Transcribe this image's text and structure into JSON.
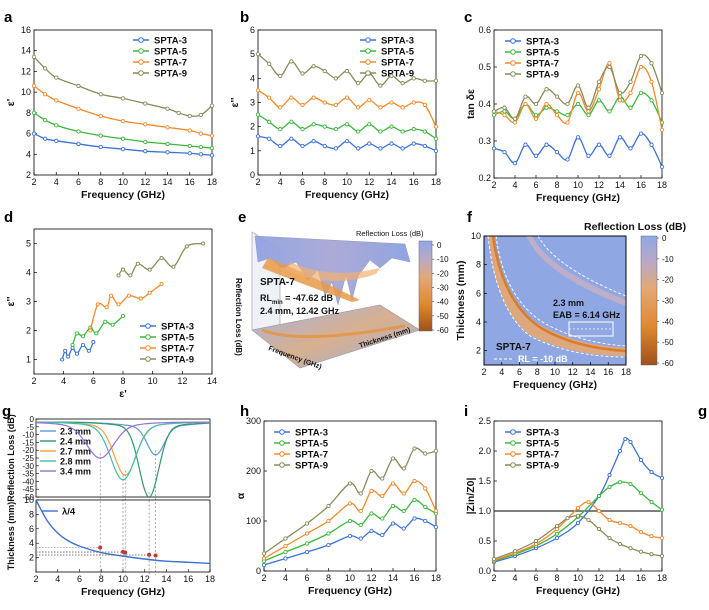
{
  "colors": {
    "SPTA-3": "#3a72d8",
    "SPTA-5": "#3db83d",
    "SPTA-7": "#f28a2a",
    "SPTA-9": "#8a8a5a",
    "g_2.3": "#5b9bd5",
    "g_2.4": "#2e9a6e",
    "g_2.7": "#f5a03a",
    "g_2.8": "#3dbfb0",
    "g_3.4": "#9370db"
  },
  "chart_data": [
    {
      "panel": "a",
      "type": "line",
      "xlabel": "Frequency (GHz)",
      "ylabel": "ε'",
      "xlim": [
        2,
        18
      ],
      "ylim": [
        2,
        16
      ],
      "xticks": [
        "2",
        "4",
        "6",
        "8",
        "10",
        "12",
        "14",
        "16",
        "18"
      ],
      "yticks": [
        "2",
        "4",
        "6",
        "8",
        "10",
        "12",
        "14",
        "16"
      ],
      "legend": "top-right",
      "series": [
        {
          "name": "SPTA-3",
          "x": [
            2,
            3,
            4,
            6,
            8,
            10,
            12,
            14,
            16,
            17,
            18
          ],
          "values": [
            6.0,
            5.5,
            5.3,
            5.0,
            4.7,
            4.5,
            4.3,
            4.2,
            4.1,
            4.0,
            3.9
          ]
        },
        {
          "name": "SPTA-5",
          "x": [
            2,
            3,
            4,
            6,
            8,
            10,
            12,
            14,
            16,
            17,
            18
          ],
          "values": [
            8.0,
            7.3,
            6.8,
            6.2,
            5.8,
            5.5,
            5.2,
            5.0,
            4.8,
            4.7,
            4.6
          ]
        },
        {
          "name": "SPTA-7",
          "x": [
            2,
            3,
            4,
            6,
            8,
            10,
            12,
            14,
            16,
            17,
            18
          ],
          "values": [
            10.6,
            9.8,
            9.2,
            8.4,
            7.7,
            7.2,
            6.9,
            6.6,
            6.3,
            6.0,
            5.8
          ]
        },
        {
          "name": "SPTA-9",
          "x": [
            2,
            3,
            4,
            6,
            8,
            10,
            12,
            14,
            15,
            16,
            17,
            18
          ],
          "values": [
            13.4,
            12.3,
            11.4,
            10.6,
            9.8,
            9.4,
            8.9,
            8.4,
            8.0,
            7.7,
            7.8,
            8.7
          ]
        }
      ]
    },
    {
      "panel": "b",
      "type": "line",
      "xlabel": "Frequency (GHz)",
      "ylabel": "ε''",
      "xlim": [
        2,
        18
      ],
      "ylim": [
        0,
        6
      ],
      "xticks": [
        "2",
        "4",
        "6",
        "8",
        "10",
        "12",
        "14",
        "16",
        "18"
      ],
      "yticks": [
        "0",
        "1",
        "2",
        "3",
        "4",
        "5",
        "6"
      ],
      "legend": "top-right",
      "series": [
        {
          "name": "SPTA-3",
          "x": [
            2,
            3,
            4,
            5,
            6,
            7,
            8,
            9,
            10,
            11,
            12,
            13,
            14,
            15,
            16,
            17,
            18
          ],
          "values": [
            1.6,
            1.5,
            1.2,
            1.5,
            1.2,
            1.4,
            1.2,
            1.1,
            1.4,
            1.1,
            1.3,
            1.1,
            1.3,
            1.1,
            1.3,
            1.2,
            1.0
          ]
        },
        {
          "name": "SPTA-5",
          "x": [
            2,
            3,
            4,
            5,
            6,
            7,
            8,
            9,
            10,
            11,
            12,
            13,
            14,
            15,
            16,
            17,
            18
          ],
          "values": [
            2.5,
            2.2,
            1.9,
            2.2,
            1.9,
            2.1,
            2.0,
            1.9,
            2.1,
            1.8,
            2.1,
            1.8,
            2.0,
            1.8,
            1.9,
            1.8,
            1.5
          ]
        },
        {
          "name": "SPTA-7",
          "x": [
            2,
            3,
            4,
            5,
            6,
            7,
            8,
            9,
            10,
            11,
            12,
            13,
            14,
            15,
            16,
            17,
            18
          ],
          "values": [
            3.5,
            3.2,
            2.8,
            3.2,
            2.9,
            3.2,
            3.0,
            2.9,
            3.2,
            2.8,
            3.1,
            2.8,
            3.0,
            2.8,
            3.0,
            2.9,
            2.0
          ]
        },
        {
          "name": "SPTA-9",
          "x": [
            2,
            3,
            4,
            5,
            6,
            7,
            8,
            9,
            10,
            11,
            12,
            13,
            14,
            15,
            16,
            17,
            18
          ],
          "values": [
            5.0,
            4.6,
            4.1,
            4.7,
            4.2,
            4.5,
            4.3,
            4.0,
            4.3,
            3.8,
            4.2,
            3.7,
            4.1,
            3.8,
            4.0,
            3.9,
            3.9
          ]
        }
      ]
    },
    {
      "panel": "c",
      "type": "line",
      "xlabel": "Frequency (GHz)",
      "ylabel": "tan δε",
      "xlim": [
        2,
        18
      ],
      "ylim": [
        0.2,
        0.6
      ],
      "xticks": [
        "2",
        "4",
        "6",
        "8",
        "10",
        "12",
        "14",
        "16",
        "18"
      ],
      "yticks": [
        "0.2",
        "0.3",
        "0.4",
        "0.5",
        "0.6"
      ],
      "legend": "top-left",
      "series": [
        {
          "name": "SPTA-3",
          "x": [
            2,
            3,
            4,
            5,
            6,
            7,
            8,
            9,
            10,
            11,
            12,
            13,
            14,
            15,
            16,
            17,
            18
          ],
          "values": [
            0.28,
            0.27,
            0.24,
            0.29,
            0.26,
            0.29,
            0.27,
            0.25,
            0.31,
            0.26,
            0.29,
            0.26,
            0.31,
            0.28,
            0.32,
            0.29,
            0.23
          ]
        },
        {
          "name": "SPTA-5",
          "x": [
            2,
            3,
            4,
            5,
            6,
            7,
            8,
            9,
            10,
            11,
            12,
            13,
            14,
            15,
            16,
            17,
            18
          ],
          "values": [
            0.37,
            0.38,
            0.36,
            0.4,
            0.37,
            0.39,
            0.38,
            0.37,
            0.4,
            0.37,
            0.41,
            0.38,
            0.42,
            0.39,
            0.43,
            0.41,
            0.35
          ]
        },
        {
          "name": "SPTA-7",
          "x": [
            2,
            3,
            4,
            5,
            6,
            7,
            8,
            9,
            10,
            11,
            12,
            13,
            14,
            15,
            16,
            17,
            18
          ],
          "values": [
            0.38,
            0.37,
            0.35,
            0.4,
            0.36,
            0.4,
            0.37,
            0.35,
            0.43,
            0.38,
            0.44,
            0.51,
            0.41,
            0.43,
            0.5,
            0.46,
            0.33
          ]
        },
        {
          "name": "SPTA-9",
          "x": [
            2,
            3,
            4,
            5,
            6,
            7,
            8,
            9,
            10,
            11,
            12,
            13,
            14,
            15,
            16,
            17,
            18
          ],
          "values": [
            0.38,
            0.39,
            0.36,
            0.42,
            0.4,
            0.44,
            0.42,
            0.4,
            0.45,
            0.39,
            0.46,
            0.5,
            0.43,
            0.46,
            0.53,
            0.51,
            0.43
          ]
        }
      ]
    },
    {
      "panel": "d",
      "type": "line",
      "xlabel": "ε'",
      "ylabel": "ε''",
      "xlim": [
        2,
        14
      ],
      "ylim": [
        0.5,
        5.5
      ],
      "xticks": [
        "2",
        "4",
        "6",
        "8",
        "10",
        "12",
        "14"
      ],
      "yticks": [
        "1",
        "2",
        "3",
        "4",
        "5"
      ],
      "legend": "bottom-right",
      "series": [
        {
          "name": "SPTA-3",
          "x": [
            3.9,
            4.1,
            4.3,
            4.6,
            4.9,
            5.3,
            5.7,
            6.0
          ],
          "values": [
            1.0,
            1.3,
            1.1,
            1.4,
            1.2,
            1.5,
            1.3,
            1.6
          ]
        },
        {
          "name": "SPTA-5",
          "x": [
            4.6,
            4.9,
            5.3,
            5.8,
            6.2,
            6.8,
            7.3,
            8.0
          ],
          "values": [
            1.5,
            1.9,
            1.8,
            2.1,
            1.9,
            2.3,
            2.2,
            2.5
          ]
        },
        {
          "name": "SPTA-7",
          "x": [
            5.8,
            6.3,
            6.9,
            7.2,
            7.7,
            8.4,
            9.2,
            9.8,
            10.6
          ],
          "values": [
            2.0,
            2.9,
            2.8,
            3.2,
            2.9,
            3.2,
            3.1,
            3.3,
            3.6
          ]
        },
        {
          "name": "SPTA-9",
          "x": [
            7.7,
            8.0,
            8.5,
            9.0,
            9.8,
            10.6,
            11.4,
            12.3,
            13.4
          ],
          "values": [
            3.9,
            4.1,
            3.9,
            4.3,
            4.1,
            4.5,
            4.2,
            4.9,
            5.0
          ]
        }
      ]
    },
    {
      "panel": "e",
      "type": "surface3d",
      "zlabel": "Reflection Loss (dB)",
      "colorbar_title": "Reflection Loss (dB)",
      "colorbar_ticks": [
        "0",
        "-10",
        "-20",
        "-30",
        "-40",
        "-50",
        "-60"
      ],
      "sample": "SPTA-7",
      "rl_min_label": "RL",
      "rl_min_sub": "min",
      "rl_min_value": " = -47.62 dB",
      "condition": "2.4 mm, 12.42 GHz",
      "xaxis": "Frequency (GHz)",
      "yaxis": "Thickness (mm)"
    },
    {
      "panel": "f",
      "type": "heatmap",
      "title": "Reflection Loss (dB)",
      "xlabel": "Frequency (GHz)",
      "ylabel": "Thickness (mm)",
      "xlim": [
        2,
        18
      ],
      "ylim": [
        1,
        10
      ],
      "xticks": [
        "2",
        "4",
        "6",
        "8",
        "10",
        "12",
        "14",
        "16",
        "18"
      ],
      "yticks": [
        "2",
        "4",
        "6",
        "8",
        "10"
      ],
      "colorbar_ticks": [
        "0",
        "-10",
        "-20",
        "-30",
        "-40",
        "-50",
        "-60"
      ],
      "sample": "SPTA-7",
      "rl_label": "RL = -10 dB",
      "eab_thickness": "2.3 mm",
      "eab_text": "EAB = 6.14 GHz",
      "eab_range_ghz": [
        11.4,
        17.5
      ]
    },
    {
      "panel": "g",
      "type": "line",
      "top": {
        "ylabel": "Reflection Loss (dB)",
        "xlim": [
          2,
          18
        ],
        "ylim": [
          -50,
          0
        ],
        "yticks": [
          "0",
          "-5",
          "-10",
          "-15",
          "-20",
          "-25",
          "-30",
          "-35",
          "-40",
          "-45",
          "-50"
        ],
        "series": [
          {
            "name": "2.3 mm",
            "dip_ghz": 13.0,
            "dip_db": -20
          },
          {
            "name": "2.4 mm",
            "dip_ghz": 12.4,
            "dip_db": -47
          },
          {
            "name": "2.7 mm",
            "dip_ghz": 10.2,
            "dip_db": -33
          },
          {
            "name": "2.8 mm",
            "dip_ghz": 10.0,
            "dip_db": -36
          },
          {
            "name": "3.4 mm",
            "dip_ghz": 7.9,
            "dip_db": -22
          }
        ]
      },
      "bottom": {
        "ylabel": "Thickness (mm)",
        "xlabel": "Frequency (GHz)",
        "legend": "λ/4",
        "xlim": [
          2,
          18
        ],
        "ylim": [
          0,
          10
        ],
        "xticks": [
          "2",
          "4",
          "6",
          "8",
          "10",
          "12",
          "14",
          "16",
          "18"
        ],
        "yticks": [
          "2",
          "4",
          "6",
          "8",
          "10"
        ],
        "x": [
          2,
          3,
          4,
          5,
          6,
          8,
          10,
          12,
          14,
          16,
          18
        ],
        "values": [
          10.5,
          7.2,
          5.4,
          4.3,
          3.6,
          2.7,
          2.2,
          1.8,
          1.5,
          1.35,
          1.2
        ]
      }
    },
    {
      "panel": "h",
      "type": "line",
      "xlabel": "Frequency (GHz)",
      "ylabel": "α",
      "xlim": [
        2,
        18
      ],
      "ylim": [
        0,
        300
      ],
      "xticks": [
        "2",
        "4",
        "6",
        "8",
        "10",
        "12",
        "14",
        "16",
        "18"
      ],
      "yticks": [
        "0",
        "100",
        "200",
        "300"
      ],
      "legend": "top-left",
      "series": [
        {
          "name": "SPTA-3",
          "x": [
            2,
            4,
            6,
            8,
            10,
            11,
            12,
            13,
            14,
            15,
            16,
            17,
            18
          ],
          "values": [
            12,
            25,
            38,
            52,
            70,
            65,
            80,
            72,
            95,
            85,
            105,
            100,
            88
          ]
        },
        {
          "name": "SPTA-5",
          "x": [
            2,
            4,
            6,
            8,
            10,
            11,
            12,
            13,
            14,
            15,
            16,
            17,
            18
          ],
          "values": [
            20,
            38,
            55,
            75,
            100,
            92,
            115,
            105,
            130,
            120,
            142,
            128,
            115
          ]
        },
        {
          "name": "SPTA-7",
          "x": [
            2,
            4,
            6,
            8,
            10,
            11,
            12,
            13,
            14,
            15,
            16,
            17,
            18
          ],
          "values": [
            25,
            50,
            75,
            100,
            135,
            120,
            160,
            150,
            175,
            155,
            180,
            165,
            120
          ]
        },
        {
          "name": "SPTA-9",
          "x": [
            2,
            4,
            6,
            8,
            10,
            11,
            12,
            13,
            14,
            15,
            16,
            17,
            18
          ],
          "values": [
            35,
            65,
            95,
            130,
            175,
            155,
            200,
            185,
            225,
            205,
            245,
            235,
            240
          ]
        }
      ]
    },
    {
      "panel": "i",
      "type": "line",
      "xlabel": "Frequency (GHz)",
      "ylabel": "|Zin/Z0|",
      "xlim": [
        2,
        18
      ],
      "ylim": [
        0.0,
        2.5
      ],
      "xticks": [
        "2",
        "4",
        "6",
        "8",
        "10",
        "12",
        "14",
        "16",
        "18"
      ],
      "yticks": [
        "0.0",
        "0.5",
        "1.0",
        "1.5",
        "2.0",
        "2.5"
      ],
      "hline": 1.0,
      "legend": "top-left",
      "series": [
        {
          "name": "SPTA-3",
          "x": [
            2,
            4,
            6,
            8,
            10,
            12,
            13,
            14,
            14.5,
            15,
            16,
            17,
            18
          ],
          "values": [
            0.15,
            0.25,
            0.38,
            0.55,
            0.8,
            1.25,
            1.6,
            2.0,
            2.2,
            2.15,
            1.85,
            1.65,
            1.55
          ]
        },
        {
          "name": "SPTA-5",
          "x": [
            2,
            4,
            6,
            8,
            10,
            12,
            13,
            14,
            15,
            16,
            17,
            18
          ],
          "values": [
            0.17,
            0.28,
            0.42,
            0.62,
            0.9,
            1.25,
            1.4,
            1.48,
            1.45,
            1.3,
            1.15,
            1.02
          ]
        },
        {
          "name": "SPTA-7",
          "x": [
            2,
            4,
            6,
            8,
            10,
            11,
            12,
            13,
            14,
            15,
            16,
            17,
            18
          ],
          "values": [
            0.18,
            0.3,
            0.45,
            0.7,
            1.05,
            1.15,
            1.0,
            0.85,
            0.8,
            0.75,
            0.65,
            0.58,
            0.55
          ]
        },
        {
          "name": "SPTA-9",
          "x": [
            2,
            4,
            6,
            8,
            9,
            10,
            11,
            12,
            13,
            14,
            15,
            16,
            17,
            18
          ],
          "values": [
            0.2,
            0.33,
            0.5,
            0.75,
            0.88,
            0.92,
            0.85,
            0.7,
            0.55,
            0.45,
            0.38,
            0.32,
            0.28,
            0.25
          ]
        }
      ]
    }
  ],
  "panel_labels": [
    "a",
    "b",
    "c",
    "d",
    "e",
    "f",
    "g",
    "h",
    "i",
    "g"
  ]
}
